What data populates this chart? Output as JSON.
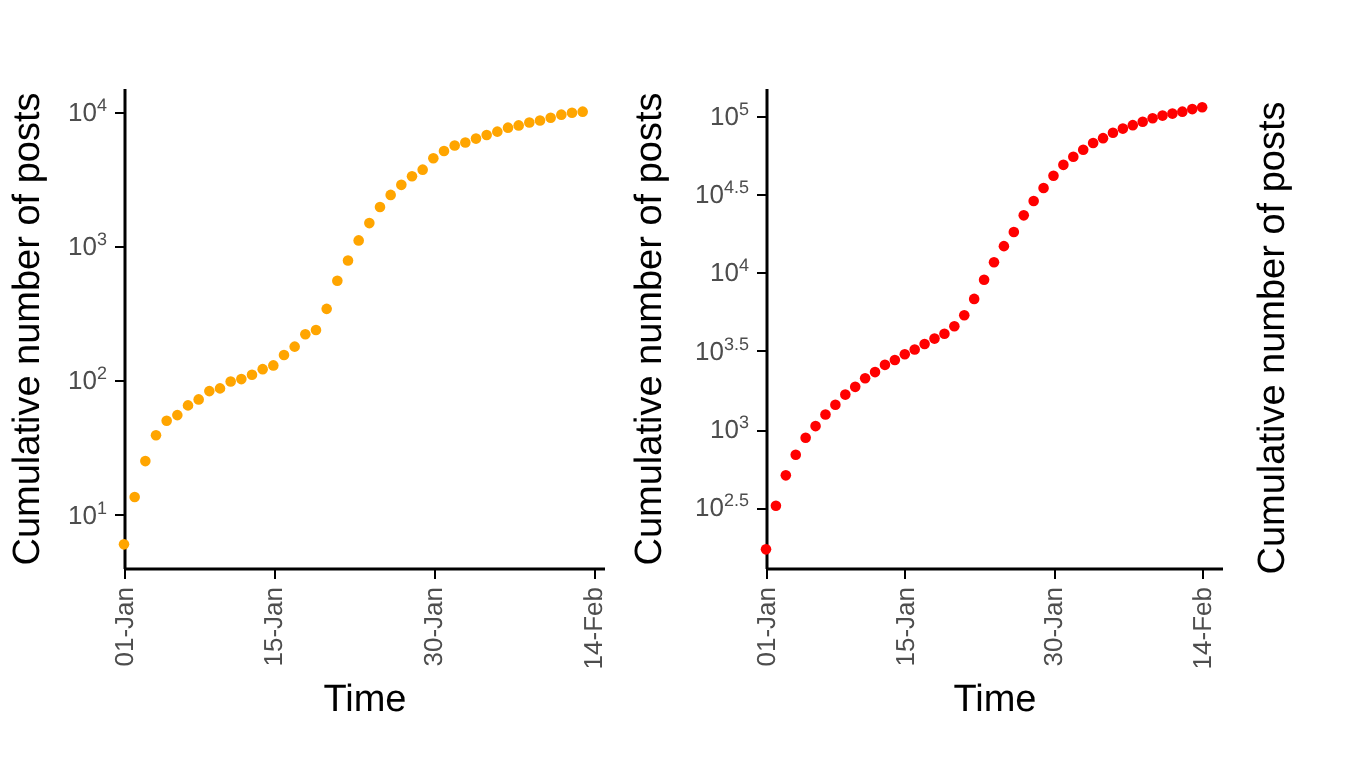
{
  "chart_data": [
    {
      "type": "scatter",
      "xlabel": "Time",
      "ylabel": "Cumulative number of posts",
      "log": "y",
      "grid": false,
      "marker": "circle",
      "xlim": [
        "--01-01",
        "--02-15"
      ],
      "xticks": [
        {
          "value": "--01-01",
          "label": "01-Jan"
        },
        {
          "value": "--01-15",
          "label": "15-Jan"
        },
        {
          "value": "--01-30",
          "label": "30-Jan"
        },
        {
          "value": "--02-14",
          "label": "14-Feb"
        }
      ],
      "ylim": [
        4,
        15000
      ],
      "yticks": [
        {
          "value": 10,
          "label": "10$^{1}$"
        },
        {
          "value": 100,
          "label": "10$^{2}$"
        },
        {
          "value": 1000,
          "label": "10$^{3}$"
        },
        {
          "value": 10000,
          "label": "10$^{4}$"
        }
      ],
      "series": [
        {
          "color": "#ffa500",
          "x": [
            "--01-01",
            "--01-02",
            "--01-03",
            "--01-04",
            "--01-05",
            "--01-06",
            "--01-07",
            "--01-08",
            "--01-09",
            "--01-10",
            "--01-11",
            "--01-12",
            "--01-13",
            "--01-14",
            "--01-15",
            "--01-16",
            "--01-17",
            "--01-18",
            "--01-19",
            "--01-20",
            "--01-21",
            "--01-22",
            "--01-23",
            "--01-24",
            "--01-25",
            "--01-26",
            "--01-27",
            "--01-28",
            "--01-29",
            "--01-30",
            "--01-31",
            "--02-01",
            "--02-02",
            "--02-03",
            "--02-04",
            "--02-05",
            "--02-06",
            "--02-07",
            "--02-08",
            "--02-09",
            "--02-10",
            "--02-11",
            "--02-12",
            "--02-13"
          ],
          "values": [
            6,
            13.5,
            25,
            39,
            50,
            55,
            65,
            72,
            83,
            87,
            98,
            102,
            110,
            121,
            129,
            154,
            178,
            220,
            237,
            340,
            550,
            780,
            1100,
            1480,
            1950,
            2400,
            2850,
            3300,
            3700,
            4500,
            5100,
            5600,
            5900,
            6300,
            6700,
            7100,
            7600,
            7900,
            8300,
            8600,
            9000,
            9500,
            9800,
            10000
          ]
        }
      ]
    },
    {
      "type": "scatter",
      "xlabel": "Time",
      "ylabel": "Cumulative number of posts",
      "log": "y",
      "grid": false,
      "marker": "circle",
      "xlim": [
        "--01-01",
        "--02-16"
      ],
      "xticks": [
        {
          "value": "--01-01",
          "label": "01-Jan"
        },
        {
          "value": "--01-15",
          "label": "15-Jan"
        },
        {
          "value": "--01-30",
          "label": "30-Jan"
        },
        {
          "value": "--02-14",
          "label": "14-Feb"
        }
      ],
      "ylim": [
        130,
        150000
      ],
      "yticks": [
        {
          "value": 316.2,
          "label": "10$^{2.5}$"
        },
        {
          "value": 1000,
          "label": "10$^{3}$"
        },
        {
          "value": 3162,
          "label": "10$^{3.5}$"
        },
        {
          "value": 10000,
          "label": "10$^{4}$"
        },
        {
          "value": 31623,
          "label": "10$^{4.5}$"
        },
        {
          "value": 100000,
          "label": "10$^{5}$"
        }
      ],
      "series": [
        {
          "color": "#ff0000",
          "x": [
            "--01-01",
            "--01-02",
            "--01-03",
            "--01-04",
            "--01-05",
            "--01-06",
            "--01-07",
            "--01-08",
            "--01-09",
            "--01-10",
            "--01-11",
            "--01-12",
            "--01-13",
            "--01-14",
            "--01-15",
            "--01-16",
            "--01-17",
            "--01-18",
            "--01-19",
            "--01-20",
            "--01-21",
            "--01-22",
            "--01-23",
            "--01-24",
            "--01-25",
            "--01-26",
            "--01-27",
            "--01-28",
            "--01-29",
            "--01-30",
            "--01-31",
            "--02-01",
            "--02-02",
            "--02-03",
            "--02-04",
            "--02-05",
            "--02-06",
            "--02-07",
            "--02-08",
            "--02-09",
            "--02-10",
            "--02-11",
            "--02-12",
            "--02-13",
            "--02-14"
          ],
          "values": [
            171,
            324,
            507,
            686,
            881,
            1045,
            1240,
            1430,
            1660,
            1860,
            2110,
            2310,
            2570,
            2760,
            3000,
            3220,
            3490,
            3780,
            4060,
            4530,
            5320,
            6770,
            8970,
            11600,
            14700,
            18100,
            23100,
            28500,
            34500,
            41300,
            48500,
            54700,
            60500,
            66900,
            71800,
            77700,
            82600,
            86900,
            91300,
            96100,
            100000,
            103000,
            106000,
            110000,
            113000
          ]
        }
      ]
    },
    {
      "type": "other",
      "ylabel": "Cumulative number of posts"
    }
  ]
}
